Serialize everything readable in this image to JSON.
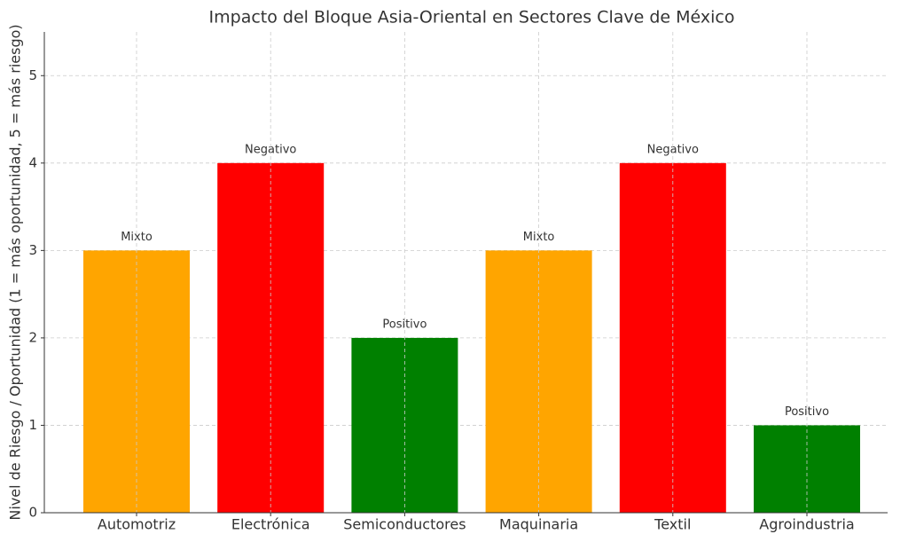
{
  "chart_data": {
    "type": "bar",
    "title": "Impacto del Bloque Asia-Oriental en Sectores Clave de México",
    "y_label": "Nivel de Riesgo / Oportunidad (1 = más oportunidad, 5 = más riesgo)",
    "categories": [
      "Automotriz",
      "Electrónica",
      "Semiconductores",
      "Maquinaria",
      "Textil",
      "Agroindustria"
    ],
    "values": [
      3,
      4,
      2,
      3,
      4,
      1
    ],
    "annotations": [
      "Mixto",
      "Negativo",
      "Positivo",
      "Mixto",
      "Negativo",
      "Positivo"
    ],
    "colors": [
      "#ffa500",
      "#ff0000",
      "#008000",
      "#ffa500",
      "#ff0000",
      "#008000"
    ],
    "ylim": [
      0,
      5.5
    ],
    "yticks": [
      0,
      1,
      2,
      3,
      4,
      5
    ],
    "grid": true
  }
}
